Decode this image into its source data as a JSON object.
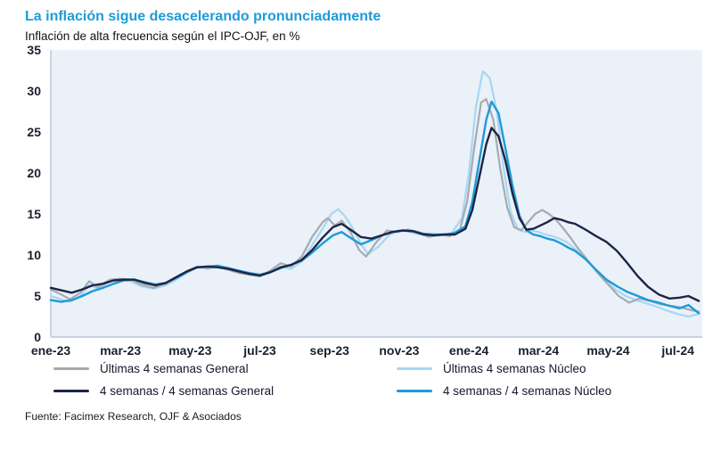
{
  "header": {
    "title": "La inflación sigue desacelerando pronunciadamente",
    "subtitle": "Inflación de alta frecuencia según el IPC-OJF, en %"
  },
  "footer": {
    "source": "Fuente: Facimex Research, OJF & Asociados"
  },
  "chart_data": {
    "type": "line",
    "title": "La inflación sigue desacelerando pronunciadamente",
    "subtitle": "Inflación de alta frecuencia según el IPC-OJF, en %",
    "xlabel": "",
    "ylabel": "",
    "xlim": [
      0,
      18.7
    ],
    "ylim": [
      0,
      35
    ],
    "grid": false,
    "legend_position": "bottom",
    "plot_bg": "#eaf1f9",
    "axis_color": "#b9c6d8",
    "x_ticks": [
      {
        "pos": 0,
        "label": "ene-23"
      },
      {
        "pos": 2,
        "label": "mar-23"
      },
      {
        "pos": 4,
        "label": "may-23"
      },
      {
        "pos": 6,
        "label": "jul-23"
      },
      {
        "pos": 8,
        "label": "sep-23"
      },
      {
        "pos": 10,
        "label": "nov-23"
      },
      {
        "pos": 12,
        "label": "ene-24"
      },
      {
        "pos": 14,
        "label": "mar-24"
      },
      {
        "pos": 16,
        "label": "may-24"
      },
      {
        "pos": 18,
        "label": "jul-24"
      }
    ],
    "y_ticks": [
      0,
      5,
      10,
      15,
      20,
      25,
      30,
      35
    ],
    "draw_order": [
      1,
      0,
      3,
      2
    ],
    "series": [
      {
        "name": "Últimas 4 semanas General",
        "color": "#a6abb2",
        "width": 2.2,
        "points": [
          [
            0,
            5.8
          ],
          [
            0.3,
            5.2
          ],
          [
            0.55,
            4.6
          ],
          [
            0.85,
            5.4
          ],
          [
            1.1,
            6.8
          ],
          [
            1.35,
            6.1
          ],
          [
            1.7,
            7.0
          ],
          [
            2.0,
            7.1
          ],
          [
            2.3,
            7.0
          ],
          [
            2.6,
            6.4
          ],
          [
            2.95,
            6.0
          ],
          [
            3.3,
            6.5
          ],
          [
            3.6,
            7.2
          ],
          [
            3.9,
            8.0
          ],
          [
            4.2,
            8.6
          ],
          [
            4.5,
            8.4
          ],
          [
            4.8,
            8.6
          ],
          [
            5.1,
            8.2
          ],
          [
            5.4,
            7.8
          ],
          [
            5.7,
            7.6
          ],
          [
            6.0,
            7.4
          ],
          [
            6.3,
            8.1
          ],
          [
            6.6,
            9.0
          ],
          [
            6.9,
            8.6
          ],
          [
            7.2,
            9.8
          ],
          [
            7.5,
            12.2
          ],
          [
            7.8,
            14.0
          ],
          [
            7.95,
            14.5
          ],
          [
            8.15,
            13.6
          ],
          [
            8.35,
            14.2
          ],
          [
            8.6,
            12.8
          ],
          [
            8.85,
            10.6
          ],
          [
            9.05,
            9.8
          ],
          [
            9.35,
            11.6
          ],
          [
            9.65,
            13.0
          ],
          [
            9.95,
            12.8
          ],
          [
            10.25,
            13.1
          ],
          [
            10.55,
            12.8
          ],
          [
            10.85,
            12.2
          ],
          [
            11.15,
            12.5
          ],
          [
            11.45,
            12.3
          ],
          [
            11.75,
            13.2
          ],
          [
            11.95,
            16.5
          ],
          [
            12.15,
            23.0
          ],
          [
            12.35,
            28.6
          ],
          [
            12.5,
            29.0
          ],
          [
            12.7,
            26.5
          ],
          [
            12.9,
            20.5
          ],
          [
            13.1,
            15.8
          ],
          [
            13.3,
            13.4
          ],
          [
            13.5,
            13.0
          ],
          [
            13.7,
            14.0
          ],
          [
            13.9,
            15.0
          ],
          [
            14.1,
            15.5
          ],
          [
            14.3,
            15.0
          ],
          [
            14.5,
            14.3
          ],
          [
            14.7,
            13.3
          ],
          [
            14.9,
            12.2
          ],
          [
            15.1,
            11.0
          ],
          [
            15.4,
            9.4
          ],
          [
            15.7,
            7.8
          ],
          [
            16.0,
            6.4
          ],
          [
            16.3,
            5.0
          ],
          [
            16.6,
            4.2
          ],
          [
            16.9,
            4.7
          ],
          [
            17.2,
            4.4
          ],
          [
            17.5,
            4.0
          ],
          [
            17.8,
            3.8
          ],
          [
            18.1,
            3.6
          ],
          [
            18.35,
            3.3
          ],
          [
            18.6,
            3.1
          ]
        ]
      },
      {
        "name": "Últimas 4 semanas Núcleo",
        "color": "#a9d6f2",
        "width": 2.2,
        "points": [
          [
            0,
            5.0
          ],
          [
            0.3,
            4.6
          ],
          [
            0.55,
            4.3
          ],
          [
            0.85,
            5.0
          ],
          [
            1.1,
            6.3
          ],
          [
            1.35,
            5.9
          ],
          [
            1.7,
            6.8
          ],
          [
            2.0,
            7.0
          ],
          [
            2.3,
            6.8
          ],
          [
            2.6,
            6.2
          ],
          [
            2.95,
            5.9
          ],
          [
            3.3,
            6.3
          ],
          [
            3.6,
            7.0
          ],
          [
            3.9,
            7.8
          ],
          [
            4.2,
            8.5
          ],
          [
            4.5,
            8.3
          ],
          [
            4.8,
            8.6
          ],
          [
            5.1,
            8.3
          ],
          [
            5.4,
            7.9
          ],
          [
            5.7,
            7.6
          ],
          [
            6.0,
            7.4
          ],
          [
            6.3,
            7.9
          ],
          [
            6.6,
            8.6
          ],
          [
            6.9,
            8.3
          ],
          [
            7.2,
            9.2
          ],
          [
            7.5,
            11.2
          ],
          [
            7.8,
            13.2
          ],
          [
            8.05,
            15.0
          ],
          [
            8.25,
            15.6
          ],
          [
            8.45,
            14.7
          ],
          [
            8.65,
            13.4
          ],
          [
            8.9,
            11.4
          ],
          [
            9.1,
            10.1
          ],
          [
            9.4,
            11.0
          ],
          [
            9.7,
            12.4
          ],
          [
            10.0,
            13.0
          ],
          [
            10.3,
            12.8
          ],
          [
            10.6,
            12.5
          ],
          [
            10.9,
            12.3
          ],
          [
            11.2,
            12.4
          ],
          [
            11.5,
            12.6
          ],
          [
            11.8,
            14.5
          ],
          [
            12.0,
            20.0
          ],
          [
            12.2,
            28.0
          ],
          [
            12.4,
            32.4
          ],
          [
            12.6,
            31.6
          ],
          [
            12.8,
            27.5
          ],
          [
            13.0,
            20.5
          ],
          [
            13.2,
            15.2
          ],
          [
            13.4,
            13.2
          ],
          [
            13.6,
            12.8
          ],
          [
            13.8,
            13.0
          ],
          [
            14.0,
            12.8
          ],
          [
            14.2,
            12.5
          ],
          [
            14.4,
            12.3
          ],
          [
            14.6,
            12.0
          ],
          [
            14.8,
            11.6
          ],
          [
            15.0,
            10.9
          ],
          [
            15.3,
            9.8
          ],
          [
            15.6,
            8.4
          ],
          [
            15.9,
            7.0
          ],
          [
            16.2,
            5.8
          ],
          [
            16.5,
            5.0
          ],
          [
            16.8,
            4.5
          ],
          [
            17.1,
            4.1
          ],
          [
            17.4,
            3.7
          ],
          [
            17.7,
            3.2
          ],
          [
            18.0,
            2.8
          ],
          [
            18.3,
            2.5
          ],
          [
            18.6,
            2.8
          ]
        ]
      },
      {
        "name": "4 semanas / 4 semanas General",
        "color": "#1d2545",
        "width": 2.4,
        "points": [
          [
            0,
            6.0
          ],
          [
            0.3,
            5.7
          ],
          [
            0.6,
            5.4
          ],
          [
            0.9,
            5.8
          ],
          [
            1.2,
            6.3
          ],
          [
            1.5,
            6.5
          ],
          [
            1.8,
            6.9
          ],
          [
            2.1,
            7.0
          ],
          [
            2.4,
            7.0
          ],
          [
            2.7,
            6.6
          ],
          [
            3.0,
            6.3
          ],
          [
            3.3,
            6.6
          ],
          [
            3.6,
            7.3
          ],
          [
            3.9,
            8.0
          ],
          [
            4.2,
            8.5
          ],
          [
            4.5,
            8.6
          ],
          [
            4.8,
            8.5
          ],
          [
            5.1,
            8.3
          ],
          [
            5.4,
            8.0
          ],
          [
            5.7,
            7.7
          ],
          [
            6.0,
            7.5
          ],
          [
            6.3,
            7.9
          ],
          [
            6.6,
            8.5
          ],
          [
            6.9,
            8.8
          ],
          [
            7.2,
            9.4
          ],
          [
            7.5,
            10.6
          ],
          [
            7.8,
            12.1
          ],
          [
            8.1,
            13.4
          ],
          [
            8.35,
            13.8
          ],
          [
            8.6,
            13.1
          ],
          [
            8.9,
            12.2
          ],
          [
            9.2,
            12.0
          ],
          [
            9.5,
            12.4
          ],
          [
            9.8,
            12.8
          ],
          [
            10.1,
            13.0
          ],
          [
            10.4,
            12.9
          ],
          [
            10.7,
            12.5
          ],
          [
            11.0,
            12.4
          ],
          [
            11.3,
            12.5
          ],
          [
            11.6,
            12.5
          ],
          [
            11.9,
            13.2
          ],
          [
            12.1,
            15.5
          ],
          [
            12.3,
            19.5
          ],
          [
            12.5,
            23.5
          ],
          [
            12.65,
            25.5
          ],
          [
            12.85,
            24.5
          ],
          [
            13.05,
            21.5
          ],
          [
            13.25,
            17.5
          ],
          [
            13.45,
            14.5
          ],
          [
            13.65,
            13.1
          ],
          [
            13.85,
            13.2
          ],
          [
            14.05,
            13.6
          ],
          [
            14.25,
            14.0
          ],
          [
            14.45,
            14.5
          ],
          [
            14.65,
            14.3
          ],
          [
            14.85,
            14.0
          ],
          [
            15.05,
            13.8
          ],
          [
            15.35,
            13.1
          ],
          [
            15.65,
            12.3
          ],
          [
            15.95,
            11.6
          ],
          [
            16.25,
            10.5
          ],
          [
            16.55,
            9.0
          ],
          [
            16.85,
            7.4
          ],
          [
            17.15,
            6.1
          ],
          [
            17.45,
            5.2
          ],
          [
            17.75,
            4.7
          ],
          [
            18.05,
            4.8
          ],
          [
            18.3,
            5.0
          ],
          [
            18.6,
            4.4
          ]
        ]
      },
      {
        "name": "4 semanas / 4 semanas Núcleo",
        "color": "#1e9ad9",
        "width": 2.4,
        "points": [
          [
            0,
            4.5
          ],
          [
            0.3,
            4.3
          ],
          [
            0.6,
            4.5
          ],
          [
            0.9,
            5.0
          ],
          [
            1.2,
            5.6
          ],
          [
            1.5,
            6.0
          ],
          [
            1.8,
            6.5
          ],
          [
            2.1,
            6.9
          ],
          [
            2.4,
            7.0
          ],
          [
            2.7,
            6.7
          ],
          [
            3.0,
            6.4
          ],
          [
            3.3,
            6.6
          ],
          [
            3.6,
            7.2
          ],
          [
            3.9,
            7.9
          ],
          [
            4.2,
            8.5
          ],
          [
            4.5,
            8.6
          ],
          [
            4.8,
            8.7
          ],
          [
            5.1,
            8.4
          ],
          [
            5.4,
            8.1
          ],
          [
            5.7,
            7.8
          ],
          [
            6.0,
            7.6
          ],
          [
            6.3,
            7.9
          ],
          [
            6.6,
            8.4
          ],
          [
            6.9,
            8.8
          ],
          [
            7.2,
            9.3
          ],
          [
            7.5,
            10.3
          ],
          [
            7.8,
            11.4
          ],
          [
            8.1,
            12.4
          ],
          [
            8.35,
            12.8
          ],
          [
            8.6,
            12.1
          ],
          [
            8.9,
            11.3
          ],
          [
            9.2,
            11.8
          ],
          [
            9.5,
            12.4
          ],
          [
            9.8,
            12.8
          ],
          [
            10.1,
            13.0
          ],
          [
            10.4,
            12.9
          ],
          [
            10.7,
            12.6
          ],
          [
            11.0,
            12.5
          ],
          [
            11.3,
            12.5
          ],
          [
            11.6,
            12.7
          ],
          [
            11.9,
            13.5
          ],
          [
            12.1,
            16.5
          ],
          [
            12.3,
            21.5
          ],
          [
            12.5,
            26.5
          ],
          [
            12.65,
            28.7
          ],
          [
            12.85,
            27.3
          ],
          [
            13.05,
            23.0
          ],
          [
            13.25,
            18.5
          ],
          [
            13.45,
            14.8
          ],
          [
            13.65,
            13.0
          ],
          [
            13.85,
            12.5
          ],
          [
            14.05,
            12.3
          ],
          [
            14.25,
            12.0
          ],
          [
            14.45,
            11.8
          ],
          [
            14.65,
            11.4
          ],
          [
            14.85,
            10.9
          ],
          [
            15.05,
            10.5
          ],
          [
            15.35,
            9.5
          ],
          [
            15.65,
            8.2
          ],
          [
            15.95,
            7.0
          ],
          [
            16.25,
            6.2
          ],
          [
            16.55,
            5.5
          ],
          [
            16.85,
            5.0
          ],
          [
            17.15,
            4.5
          ],
          [
            17.45,
            4.2
          ],
          [
            17.75,
            3.8
          ],
          [
            18.05,
            3.5
          ],
          [
            18.3,
            3.9
          ],
          [
            18.6,
            2.9
          ]
        ]
      }
    ]
  }
}
